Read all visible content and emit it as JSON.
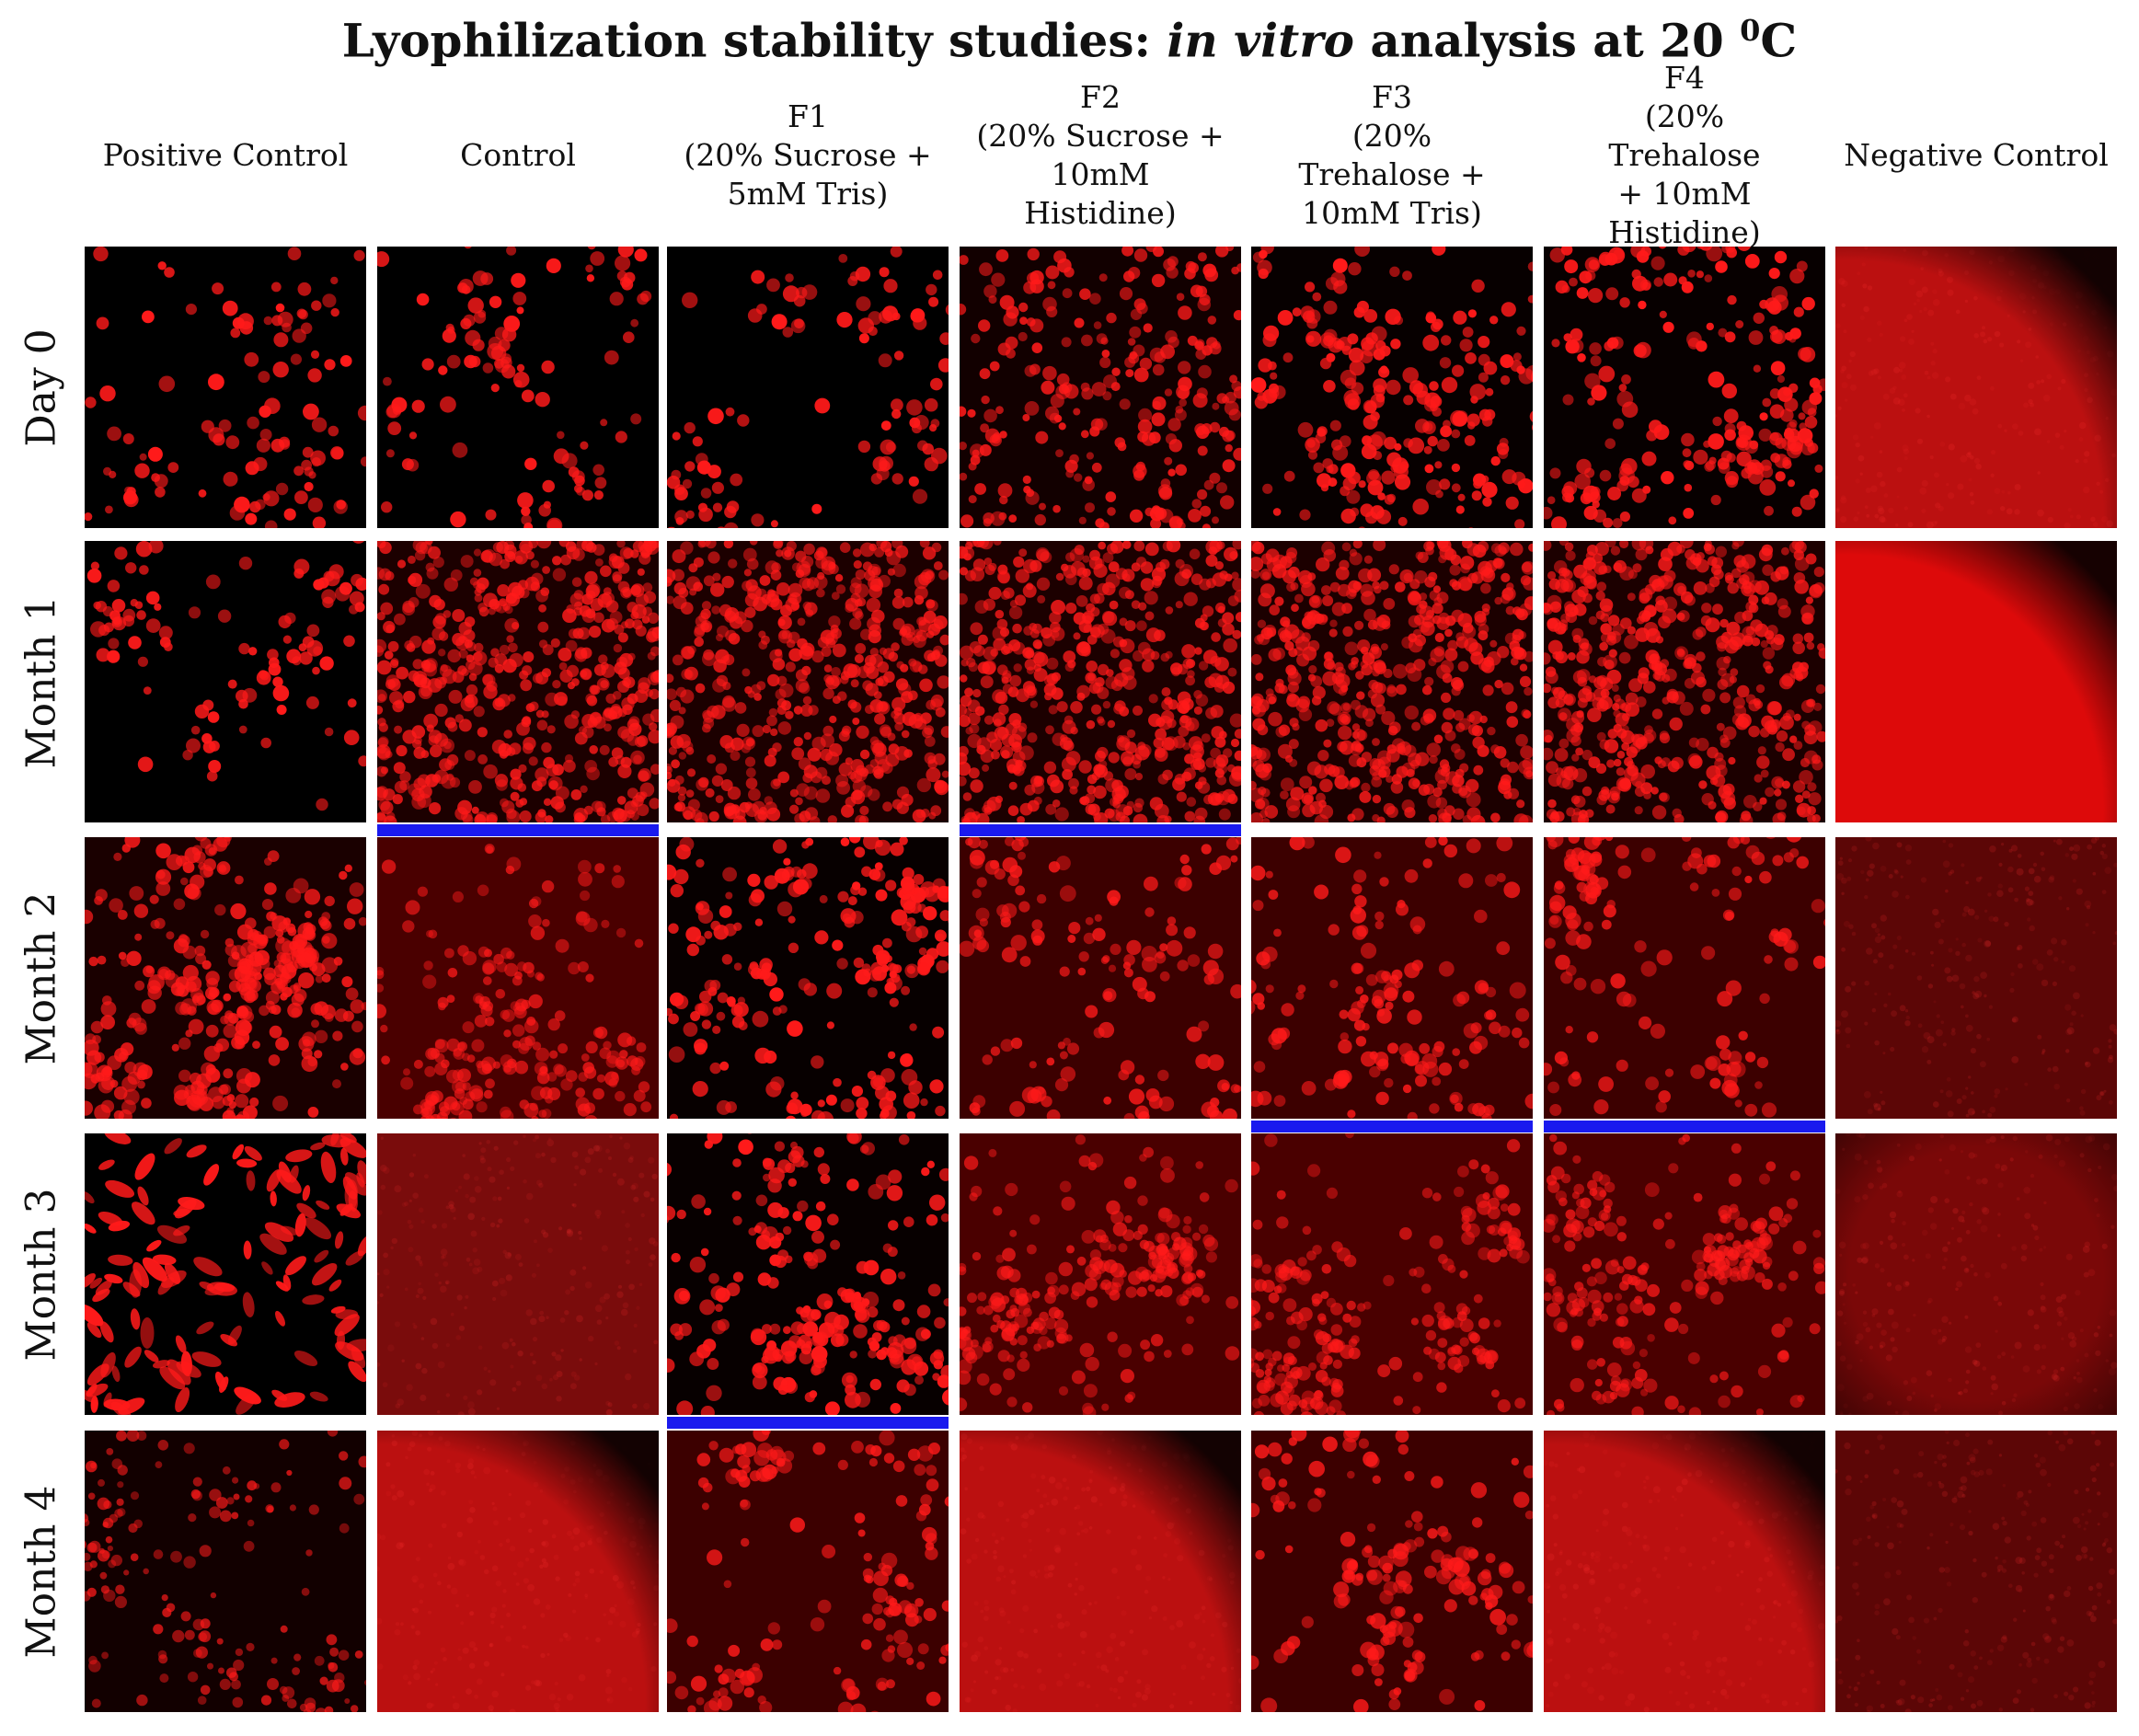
{
  "figure": {
    "title": {
      "prefix": "Lyophilization stability studies: ",
      "italic": "in vitro",
      "middle": " analysis at 20 ",
      "superscript": "0",
      "suffix": "C"
    },
    "columns": [
      "Positive Control",
      "Control",
      "F1\n(20% Sucrose +\n5mM Tris)",
      "F2\n(20% Sucrose +\n10mM\nHistidine)",
      "F3\n(20%\nTrehalose +\n10mM Tris)",
      "F4\n(20%\nTrehalose\n+ 10mM\nHistidine)",
      "Negative Control"
    ],
    "rows": [
      "Day 0",
      "Month 1",
      "Month 2",
      "Month 3",
      "Month 4"
    ],
    "tiles": [
      [
        "sparse",
        "sparse",
        "sparse",
        "medium",
        "clustered",
        "clustered",
        "haze-corner"
      ],
      [
        "sparse",
        "dense",
        "dense",
        "dense",
        "dense",
        "dense",
        "haze-bright"
      ],
      [
        "clustered-dense",
        "dim-medium",
        "clustered",
        "dim-sparse",
        "dim-sparse",
        "dim-sparse",
        "uniform-dim"
      ],
      [
        "elongated",
        "uniform",
        "clustered",
        "dim-medium",
        "dim-medium",
        "dim-medium",
        "uniform-vignette"
      ],
      [
        "sparse-soft",
        "haze-corner",
        "dim-sparse",
        "haze-corner",
        "dim-sparse",
        "haze-corner",
        "uniform-dim"
      ]
    ],
    "flagged_cells": [
      {
        "row": 1,
        "col": 1
      },
      {
        "row": 1,
        "col": 3
      },
      {
        "row": 2,
        "col": 4
      },
      {
        "row": 2,
        "col": 5
      },
      {
        "row": 3,
        "col": 2
      }
    ],
    "colors": {
      "cell": "#ff1a1a",
      "flag": "#1a1aee",
      "background": "#ffffff"
    }
  }
}
